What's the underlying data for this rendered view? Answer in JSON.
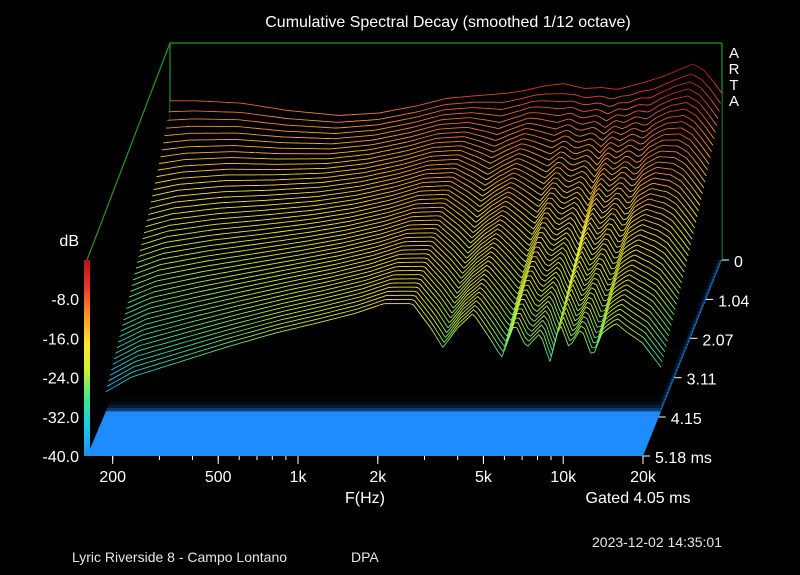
{
  "chart_data": {
    "type": "waterfall",
    "title": "Cumulative Spectral Decay (smoothed 1/12 octave)",
    "software_label": [
      "A",
      "R",
      "T",
      "A"
    ],
    "xlabel": "F(Hz)",
    "x_scale": "log",
    "x_range": [
      160,
      20000
    ],
    "x_ticks": [
      {
        "value": 200,
        "label": "200"
      },
      {
        "value": 500,
        "label": "500"
      },
      {
        "value": 1000,
        "label": "1k"
      },
      {
        "value": 2000,
        "label": "2k"
      },
      {
        "value": 5000,
        "label": "5k"
      },
      {
        "value": 10000,
        "label": "10k"
      },
      {
        "value": 20000,
        "label": "20k"
      }
    ],
    "z_label": "dB",
    "z_range": [
      -40,
      0
    ],
    "z_ticks": [
      {
        "value": -8,
        "label": "-8.0"
      },
      {
        "value": -16,
        "label": "-16.0"
      },
      {
        "value": -24,
        "label": "-24.0"
      },
      {
        "value": -32,
        "label": "-32.0"
      },
      {
        "value": -40,
        "label": "-40.0"
      }
    ],
    "t_unit": "ms",
    "t_ticks": [
      {
        "value": 0,
        "label": "0"
      },
      {
        "value": 1.04,
        "label": "1.04"
      },
      {
        "value": 2.07,
        "label": "2.07"
      },
      {
        "value": 3.11,
        "label": "3.11"
      },
      {
        "value": 4.15,
        "label": "4.15"
      },
      {
        "value": 5.18,
        "label": "5.18 ms"
      }
    ],
    "gated_label": "Gated 4.05 ms",
    "colorscale": [
      "#1e8cff",
      "#19c8e6",
      "#3ce696",
      "#c8f032",
      "#ffe632",
      "#ff9628",
      "#e63c28",
      "#b41414"
    ],
    "floor_color": "#1e8cff",
    "frame_color": "#1f9a1f",
    "response_initial": [
      [
        160,
        -7.5
      ],
      [
        200,
        -7.5
      ],
      [
        300,
        -8.0
      ],
      [
        450,
        -9.5
      ],
      [
        700,
        -10.5
      ],
      [
        1000,
        -10.0
      ],
      [
        1400,
        -8.5
      ],
      [
        1800,
        -7.0
      ],
      [
        2300,
        -6.5
      ],
      [
        3000,
        -6.0
      ],
      [
        3500,
        -5.5
      ],
      [
        4200,
        -4.5
      ],
      [
        5000,
        -4.0
      ],
      [
        6000,
        -5.0
      ],
      [
        7000,
        -4.8
      ],
      [
        8000,
        -5.2
      ],
      [
        9000,
        -4.5
      ],
      [
        10500,
        -3.5
      ],
      [
        12000,
        -2.5
      ],
      [
        14000,
        -1.0
      ],
      [
        15500,
        0.0
      ],
      [
        17000,
        -1.2
      ],
      [
        18500,
        -3.5
      ],
      [
        20000,
        -6.0
      ]
    ],
    "response_late": [
      [
        160,
        -36
      ],
      [
        200,
        -33
      ],
      [
        300,
        -30
      ],
      [
        450,
        -27
      ],
      [
        700,
        -24
      ],
      [
        1000,
        -22
      ],
      [
        1400,
        -20
      ],
      [
        1800,
        -18
      ],
      [
        2300,
        -18
      ],
      [
        2700,
        -23
      ],
      [
        3000,
        -27
      ],
      [
        3400,
        -23
      ],
      [
        3900,
        -20
      ],
      [
        4500,
        -25
      ],
      [
        5000,
        -29
      ],
      [
        5600,
        -22
      ],
      [
        6200,
        -27
      ],
      [
        7000,
        -24
      ],
      [
        7600,
        -30
      ],
      [
        8300,
        -22
      ],
      [
        9000,
        -27
      ],
      [
        10000,
        -23
      ],
      [
        11000,
        -29
      ],
      [
        12000,
        -24
      ],
      [
        13500,
        -22
      ],
      [
        15000,
        -24
      ],
      [
        17000,
        -26
      ],
      [
        20000,
        -31
      ]
    ]
  },
  "footer": {
    "device": "Lyric Riverside 8 - Campo Lontano",
    "mic": "DPA",
    "timestamp": "2023-12-02  14:35:01"
  }
}
